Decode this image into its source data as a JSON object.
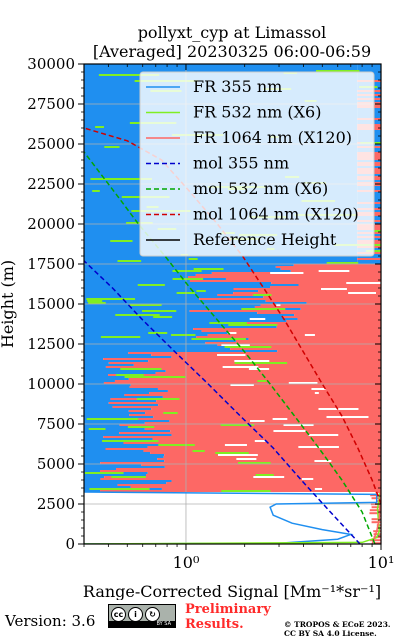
{
  "chart_data": {
    "type": "line",
    "title": "pollyxt_cyp at Limassol",
    "subtitle": "[Averaged] 20230325 06:00-06:59",
    "xlabel": "Range-Corrected Signal [Mm⁻¹*sr⁻¹]",
    "ylabel": "Height (m)",
    "xscale": "log",
    "xlim": [
      0.3,
      10
    ],
    "ylim": [
      0,
      30000
    ],
    "x_tick_labels": [
      "10⁰",
      "10¹"
    ],
    "x_ticks": [
      1,
      10
    ],
    "y_ticks": [
      0,
      2500,
      5000,
      7500,
      10000,
      12500,
      15000,
      17500,
      20000,
      22500,
      25000,
      27500,
      30000
    ],
    "y_tick_labels": [
      "0",
      "2500",
      "5000",
      "7500",
      "10000",
      "12500",
      "15000",
      "17500",
      "20000",
      "22500",
      "25000",
      "27500",
      "30000"
    ],
    "grid": true,
    "legend_position": "top-right",
    "series": [
      {
        "name": "FR 355 nm",
        "color": "#1f8ff0",
        "style": "solid",
        "points": [
          [
            0.3,
            0
          ],
          [
            3.0,
            50
          ],
          [
            6.0,
            300
          ],
          [
            7.0,
            600
          ],
          [
            5.0,
            900
          ],
          [
            3.5,
            1300
          ],
          [
            2.8,
            1800
          ],
          [
            2.7,
            2300
          ],
          [
            2.9,
            2500
          ],
          [
            9.5,
            2600
          ],
          [
            9.5,
            3100
          ],
          [
            0.3,
            3250
          ]
        ]
      },
      {
        "name": "FR 532 nm (X6)",
        "color": "#80ee22",
        "style": "solid",
        "points": [
          [
            0.3,
            0
          ],
          [
            8.0,
            100
          ],
          [
            9.5,
            400
          ],
          [
            9.8,
            800
          ],
          [
            9.7,
            1500
          ],
          [
            9.6,
            2200
          ],
          [
            9.8,
            2800
          ],
          [
            9.9,
            3200
          ]
        ]
      },
      {
        "name": "FR 1064 nm (X120)",
        "color": "#fd6865",
        "style": "solid",
        "points": [
          [
            9.0,
            0
          ],
          [
            9.5,
            800
          ],
          [
            9.8,
            1600
          ],
          [
            9.9,
            2600
          ],
          [
            10,
            3400
          ]
        ]
      },
      {
        "name": "mol 355 nm",
        "color": "#0000cc",
        "style": "dashed",
        "points": [
          [
            7.8,
            0
          ],
          [
            5.5,
            2000
          ],
          [
            3.9,
            4000
          ],
          [
            2.8,
            6000
          ],
          [
            1.9,
            8000
          ],
          [
            1.3,
            10000
          ],
          [
            0.88,
            12000
          ],
          [
            0.6,
            14000
          ],
          [
            0.42,
            16000
          ],
          [
            0.3,
            17700
          ]
        ]
      },
      {
        "name": "mol 532 nm (X6)",
        "color": "#00a800",
        "style": "dashed",
        "points": [
          [
            9.3,
            0
          ],
          [
            8.0,
            2000
          ],
          [
            6.3,
            4000
          ],
          [
            4.8,
            6000
          ],
          [
            3.6,
            8000
          ],
          [
            2.7,
            10000
          ],
          [
            2.0,
            12000
          ],
          [
            1.45,
            14000
          ],
          [
            1.05,
            16000
          ],
          [
            0.78,
            18000
          ],
          [
            0.57,
            20000
          ],
          [
            0.43,
            22000
          ],
          [
            0.3,
            24500
          ]
        ]
      },
      {
        "name": "mol 1064 nm (X120)",
        "color": "#d00000",
        "style": "dashed",
        "points": [
          [
            10,
            2500
          ],
          [
            9.0,
            4000
          ],
          [
            7.6,
            6000
          ],
          [
            6.3,
            8000
          ],
          [
            5.0,
            10000
          ],
          [
            4.0,
            12000
          ],
          [
            3.2,
            14000
          ],
          [
            2.5,
            16000
          ],
          [
            1.95,
            18000
          ],
          [
            1.45,
            20000
          ],
          [
            1.05,
            22000
          ],
          [
            0.75,
            24000
          ],
          [
            0.5,
            25200
          ],
          [
            0.3,
            26000
          ]
        ]
      },
      {
        "name": "Reference Height",
        "color": "#000000",
        "style": "solid",
        "points": []
      }
    ],
    "noise_band_colors": {
      "blue": "#1f8ff0",
      "green": "#80ee22",
      "red": "#fd6865"
    }
  },
  "footer": {
    "version_label": "Version: 3.6",
    "license_badge": {
      "label": "BY SA"
    },
    "preliminary_line1": "Preliminary",
    "preliminary_line2": "Results.",
    "copyright_line1": "© TROPOS & ECoE 2023.",
    "copyright_line2": "CC BY SA 4.0 License."
  }
}
